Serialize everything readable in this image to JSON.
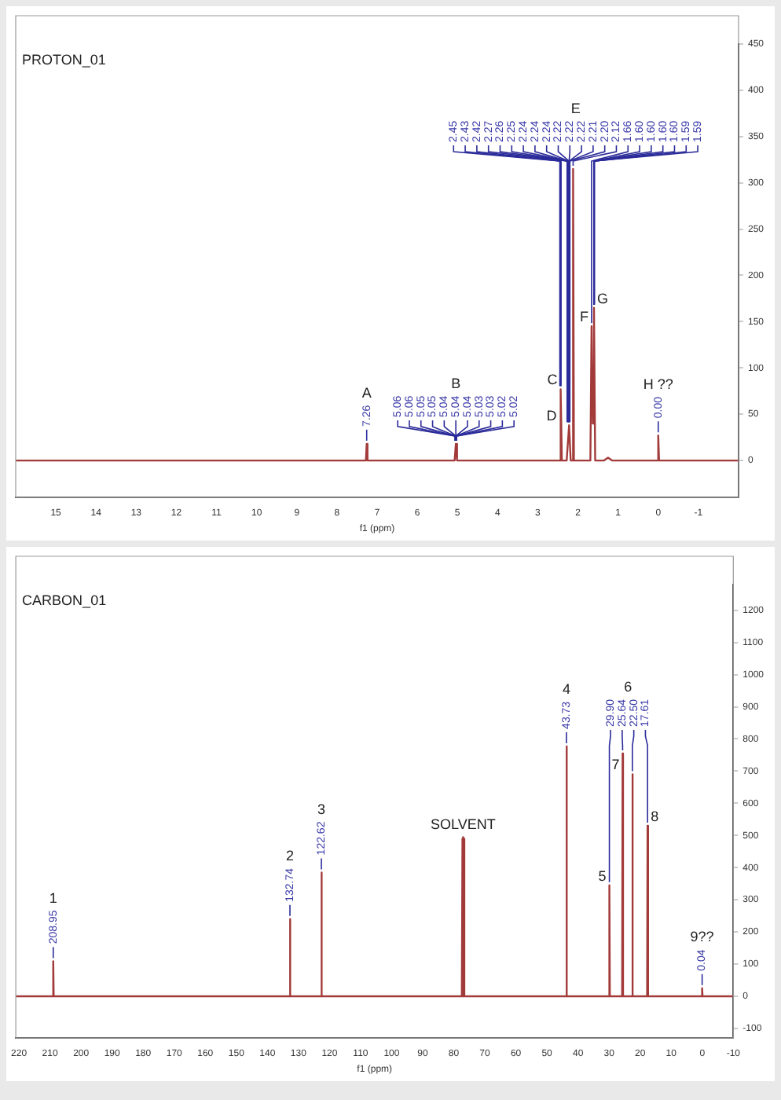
{
  "chart_data": [
    {
      "type": "line",
      "title": "PROTON_01",
      "xlabel": "f1 (ppm)",
      "marker": "none",
      "x": [
        16,
        7.28,
        7.26,
        7.24,
        5.07,
        5.04,
        5.01,
        2.46,
        2.43,
        2.4,
        2.28,
        2.22,
        2.18,
        2.14,
        2.12,
        2.1,
        1.69,
        1.66,
        1.63,
        1.6,
        1.57,
        1.35,
        1.25,
        1.15,
        0.02,
        0,
        -0.02,
        -2
      ],
      "series": [
        {
          "color": "#a33a3a",
          "values": [
            0,
            0,
            18,
            0,
            0,
            18,
            0,
            0,
            77,
            0,
            0,
            38,
            0,
            0,
            315,
            0,
            0,
            145,
            40,
            165,
            0,
            0,
            3,
            0,
            0,
            27,
            0,
            0
          ]
        }
      ],
      "xlim": [
        16,
        -2
      ],
      "xticks": [
        15,
        14,
        13,
        12,
        11,
        10,
        9,
        8,
        7,
        6,
        5,
        4,
        3,
        2,
        1,
        0,
        -1
      ],
      "ylim": [
        -40,
        450
      ],
      "yticks": [
        0,
        50,
        100,
        150,
        200,
        250,
        300,
        350,
        400,
        450
      ],
      "annotations": [
        {
          "text": "C",
          "x": 2.43,
          "y": 77
        },
        {
          "text": "D",
          "x": 2.22,
          "y": 38
        },
        {
          "text": "F",
          "x": 1.66,
          "y": 145
        },
        {
          "text": "G",
          "x": 1.6,
          "y": 165
        },
        "A",
        {
          "text": "7.26",
          "x": 7.26,
          "y": 18
        },
        "B",
        {
          "text": "5.06",
          "x": 5.06,
          "y": 18
        },
        {
          "text": "5.06",
          "x": 5.06,
          "y": 18
        },
        {
          "text": "5.05",
          "x": 5.05,
          "y": 18
        },
        {
          "text": "5.05",
          "x": 5.05,
          "y": 18
        },
        {
          "text": "5.04",
          "x": 5.04,
          "y": 18
        },
        {
          "text": "5.04",
          "x": 5.04,
          "y": 18
        },
        {
          "text": "5.04",
          "x": 5.04,
          "y": 18
        },
        {
          "text": "5.03",
          "x": 5.03,
          "y": 18
        },
        {
          "text": "5.03",
          "x": 5.03,
          "y": 18
        },
        {
          "text": "5.02",
          "x": 5.02,
          "y": 18
        },
        {
          "text": "5.02",
          "x": 5.02,
          "y": 18
        },
        "E",
        {
          "text": "2.45",
          "x": 2.45,
          "y": 77
        },
        {
          "text": "2.43",
          "x": 2.43,
          "y": 77
        },
        {
          "text": "2.42",
          "x": 2.42,
          "y": 77
        },
        {
          "text": "2.27",
          "x": 2.27,
          "y": 38
        },
        {
          "text": "2.26",
          "x": 2.26,
          "y": 38
        },
        {
          "text": "2.25",
          "x": 2.25,
          "y": 38
        },
        {
          "text": "2.24",
          "x": 2.24,
          "y": 38
        },
        {
          "text": "2.24",
          "x": 2.24,
          "y": 38
        },
        {
          "text": "2.24",
          "x": 2.24,
          "y": 38
        },
        {
          "text": "2.22",
          "x": 2.22,
          "y": 38
        },
        {
          "text": "2.22",
          "x": 2.22,
          "y": 38
        },
        {
          "text": "2.22",
          "x": 2.22,
          "y": 38
        },
        {
          "text": "2.21",
          "x": 2.21,
          "y": 38
        },
        {
          "text": "2.20",
          "x": 2.2,
          "y": 38
        },
        {
          "text": "2.12",
          "x": 2.12,
          "y": 315
        },
        {
          "text": "1.66",
          "x": 1.66,
          "y": 145
        },
        {
          "text": "1.60",
          "x": 1.6,
          "y": 165
        },
        {
          "text": "1.60",
          "x": 1.6,
          "y": 165
        },
        {
          "text": "1.60",
          "x": 1.6,
          "y": 165
        },
        {
          "text": "1.60",
          "x": 1.6,
          "y": 165
        },
        {
          "text": "1.59",
          "x": 1.59,
          "y": 165
        },
        {
          "text": "1.59",
          "x": 1.59,
          "y": 165
        },
        "H ??",
        {
          "text": "0.00",
          "x": 0,
          "y": 27
        }
      ]
    },
    {
      "type": "line",
      "title": "CARBON_01",
      "xlabel": "f1 (ppm)",
      "marker": "none",
      "x": [
        221,
        209.1,
        208.95,
        208.8,
        132.9,
        132.74,
        132.6,
        122.8,
        122.62,
        122.45,
        77.4,
        77.2,
        77.1,
        77,
        76.9,
        76.8,
        76.6,
        43.9,
        43.73,
        43.55,
        30.05,
        29.9,
        29.75,
        25.8,
        25.64,
        25.5,
        22.65,
        22.5,
        22.35,
        17.75,
        17.61,
        17.45,
        0.2,
        0.04,
        -0.1,
        -10
      ],
      "series": [
        {
          "color": "#a33a3a",
          "values": [
            0,
            0,
            109,
            0,
            0,
            240,
            0,
            0,
            385,
            0,
            0,
            490,
            0,
            495,
            0,
            490,
            0,
            0,
            777,
            0,
            0,
            345,
            0,
            0,
            755,
            0,
            0,
            690,
            0,
            0,
            530,
            0,
            0,
            25,
            0,
            0
          ]
        }
      ],
      "xlim": [
        221,
        -10
      ],
      "xticks": [
        220,
        210,
        200,
        190,
        180,
        170,
        160,
        150,
        140,
        130,
        120,
        110,
        100,
        90,
        80,
        70,
        60,
        50,
        40,
        30,
        20,
        10,
        0,
        -10
      ],
      "ylim": [
        -130,
        1280
      ],
      "yticks": [
        -100,
        0,
        100,
        200,
        300,
        400,
        500,
        600,
        700,
        800,
        900,
        1000,
        1100,
        1200
      ],
      "annotations": [
        {
          "text": "SOLVENT",
          "x": 77,
          "y": 495
        },
        {
          "text": "5",
          "x": 29.9,
          "y": 345
        },
        {
          "text": "7",
          "x": 22.5,
          "y": 690
        },
        {
          "text": "8",
          "x": 17.61,
          "y": 530
        },
        "1",
        {
          "text": "208.95",
          "x": 208.95,
          "y": 109
        },
        "2",
        {
          "text": "132.74",
          "x": 132.74,
          "y": 240
        },
        "3",
        {
          "text": "122.62",
          "x": 122.62,
          "y": 385
        },
        "4",
        {
          "text": "43.73",
          "x": 43.73,
          "y": 777
        },
        "6",
        {
          "text": "29.90",
          "x": 29.9,
          "y": 345
        },
        {
          "text": "25.64",
          "x": 25.64,
          "y": 755
        },
        {
          "text": "22.50",
          "x": 22.5,
          "y": 690
        },
        {
          "text": "17.61",
          "x": 17.61,
          "y": 530
        },
        "9??",
        {
          "text": "0.04",
          "x": 0.04,
          "y": 25
        }
      ]
    }
  ]
}
